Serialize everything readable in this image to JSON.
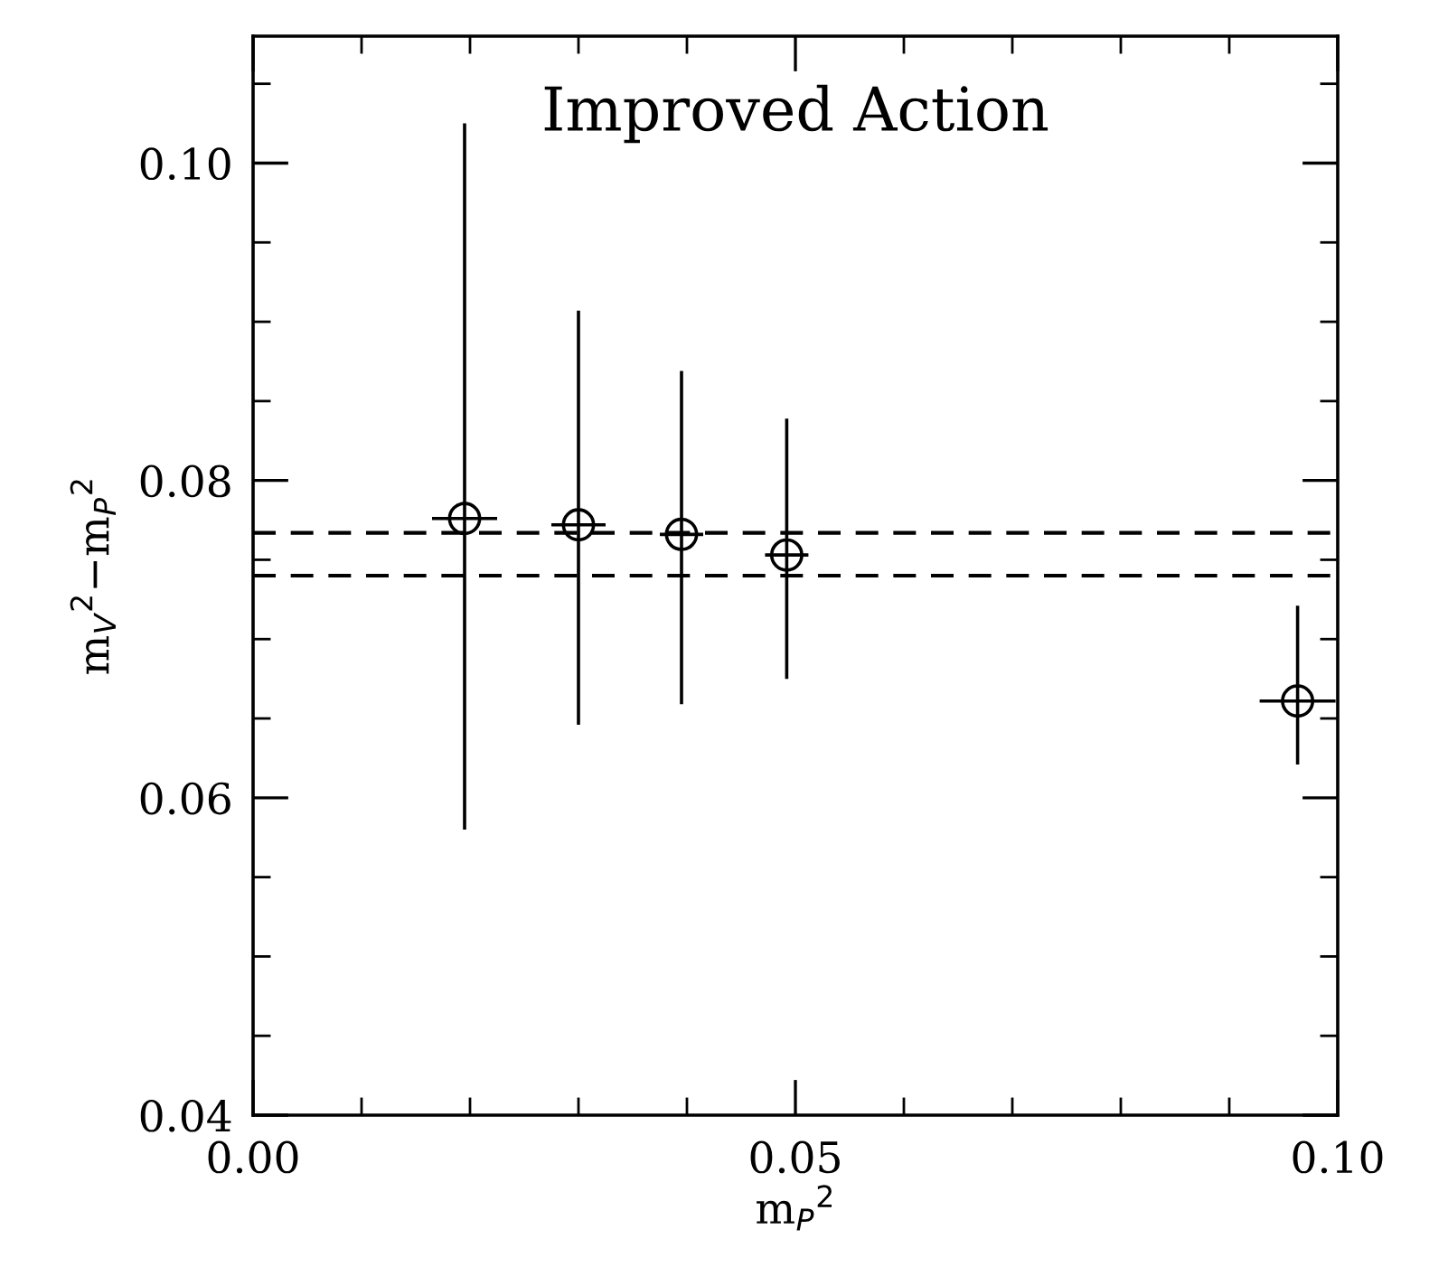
{
  "chart_data": {
    "type": "scatter",
    "title": "Improved Action",
    "xlabel": "m$_{P}$$^{2}$",
    "ylabel": "m$_{V}$$^{2}$−m$_{P}$$^{2}$",
    "x": [
      0.0195,
      0.03,
      0.0395,
      0.0492,
      0.0963
    ],
    "values": [
      0.0776,
      0.0772,
      0.0766,
      0.0753,
      0.0661
    ],
    "errors": [
      [
        0.058,
        0.1025
      ],
      [
        0.0646,
        0.0907
      ],
      [
        0.0659,
        0.0869
      ],
      [
        0.0675,
        0.0839
      ],
      [
        0.0621,
        0.0721
      ]
    ],
    "xerrors": [
      0.003,
      0.0025,
      0.002,
      0.002,
      0.0035
    ],
    "color": "#000000",
    "marker": "circle",
    "ref_lines": [
      {
        "axis": "y",
        "value": 0.0767,
        "line_style": "dashed",
        "color": "#000000"
      },
      {
        "axis": "y",
        "value": 0.074,
        "line_style": "dashed",
        "color": "#000000"
      }
    ],
    "xlim": [
      0.0,
      0.1
    ],
    "ylim": [
      0.04,
      0.108
    ],
    "xticks": [
      {
        "value": 0.0,
        "label": "0.00"
      },
      {
        "value": 0.05,
        "label": "0.05"
      },
      {
        "value": 0.1,
        "label": "0.10"
      }
    ],
    "yticks": [
      {
        "value": 0.04,
        "label": "0.04"
      },
      {
        "value": 0.06,
        "label": "0.06"
      },
      {
        "value": 0.08,
        "label": "0.08"
      },
      {
        "value": 0.1,
        "label": "0.10"
      }
    ],
    "grid": false,
    "legend": false
  }
}
